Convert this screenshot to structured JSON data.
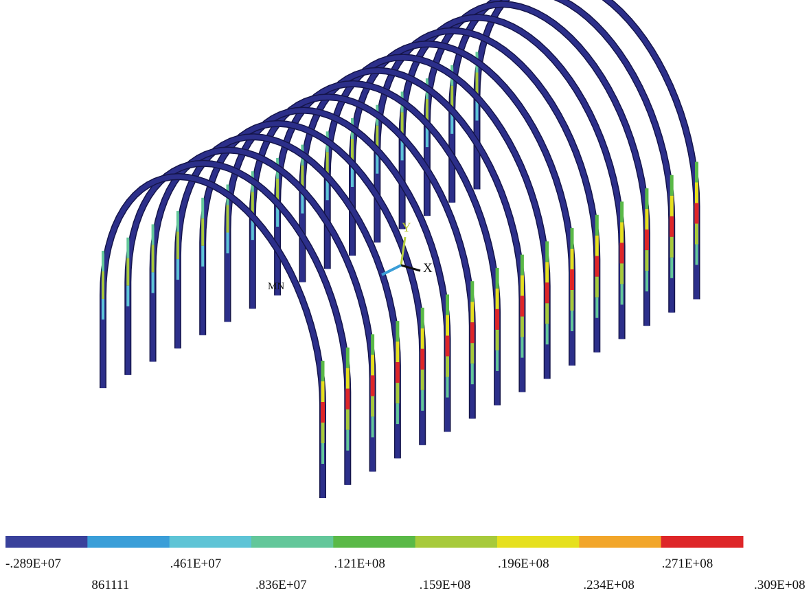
{
  "triad": {
    "y_label": "Y",
    "x_label": "X"
  },
  "model": {
    "min_marker": "MN"
  },
  "legend": {
    "colors": [
      "#39419b",
      "#3a9ed8",
      "#5ec4d6",
      "#63c79a",
      "#5ab947",
      "#a7ca3b",
      "#e6e01e",
      "#f2a62a",
      "#de2628"
    ],
    "labels": [
      "-.289E+07",
      "861111",
      ".461E+07",
      ".836E+07",
      ".121E+08",
      ".159E+08",
      ".196E+08",
      ".234E+08",
      ".271E+08",
      ".309E+08"
    ]
  }
}
